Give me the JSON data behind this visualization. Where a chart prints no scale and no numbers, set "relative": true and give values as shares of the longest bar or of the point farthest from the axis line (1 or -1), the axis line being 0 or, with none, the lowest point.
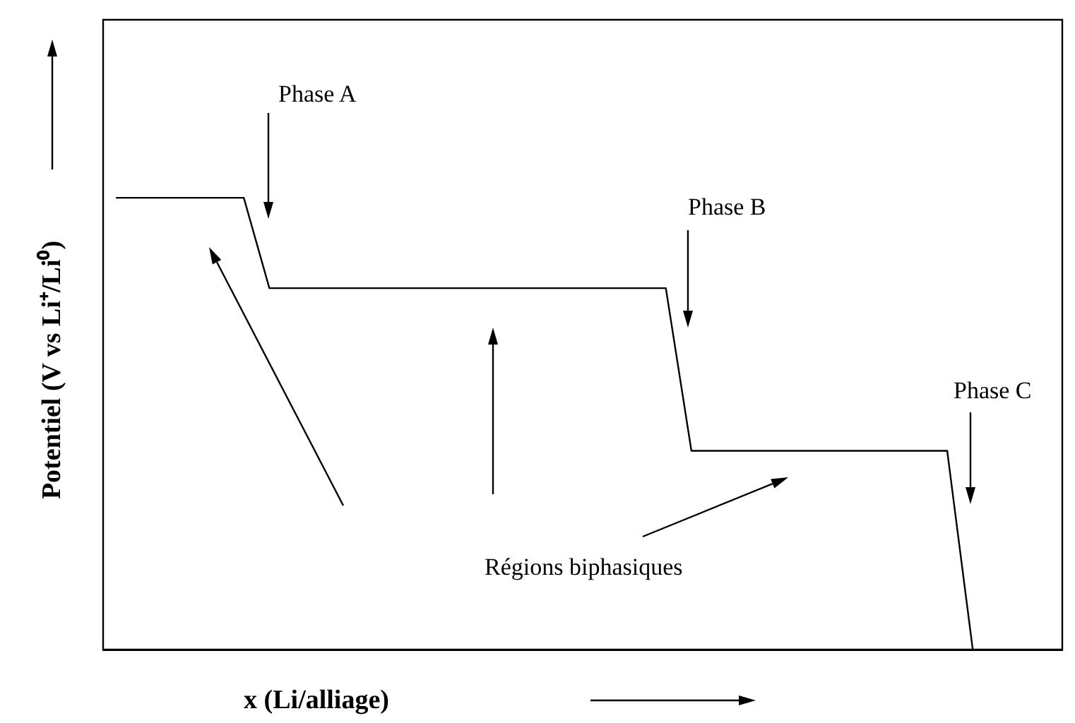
{
  "chart_data": {
    "type": "line",
    "relative": true,
    "xlabel": "x (Li/alliage)",
    "ylabel": "Potentiel (V vs Li⁺/Li⁰)",
    "marker": "none",
    "line_style": "solid",
    "grid": false,
    "categories": [
      null,
      null,
      null,
      null,
      null,
      null,
      null,
      null,
      null,
      null,
      null,
      null,
      null,
      null,
      null,
      null,
      null,
      null,
      null,
      null,
      null,
      null,
      null,
      null,
      null,
      null,
      null,
      null,
      null,
      null,
      null,
      null,
      null,
      null,
      null,
      null,
      null,
      null,
      null,
      null,
      null,
      null,
      null,
      null,
      null,
      null,
      null,
      null,
      null,
      null,
      null,
      null,
      null,
      null,
      null,
      null,
      null,
      null,
      null,
      null,
      null,
      null,
      null,
      null,
      null,
      null,
      null,
      null,
      null,
      null,
      null,
      null,
      null,
      null,
      null,
      null
    ],
    "series": [
      {
        "color": "#000000",
        "values": [
          null,
          1,
          null,
          null,
          null,
          null,
          null,
          null,
          null,
          null,
          null,
          1,
          null,
          0.8,
          null,
          null,
          null,
          null,
          null,
          null,
          null,
          null,
          null,
          null,
          null,
          null,
          null,
          null,
          null,
          null,
          null,
          null,
          null,
          null,
          null,
          null,
          null,
          null,
          null,
          null,
          null,
          null,
          null,
          null,
          0.8,
          null,
          0.44,
          null,
          null,
          null,
          null,
          null,
          null,
          null,
          null,
          null,
          null,
          null,
          null,
          null,
          null,
          null,
          null,
          null,
          null,
          null,
          0.44,
          null,
          0,
          null,
          null,
          null,
          null,
          null,
          null,
          null
        ]
      }
    ],
    "annotations": [
      "Phase A",
      "Phase B",
      "Phase C",
      "Régions biphasiques"
    ]
  }
}
